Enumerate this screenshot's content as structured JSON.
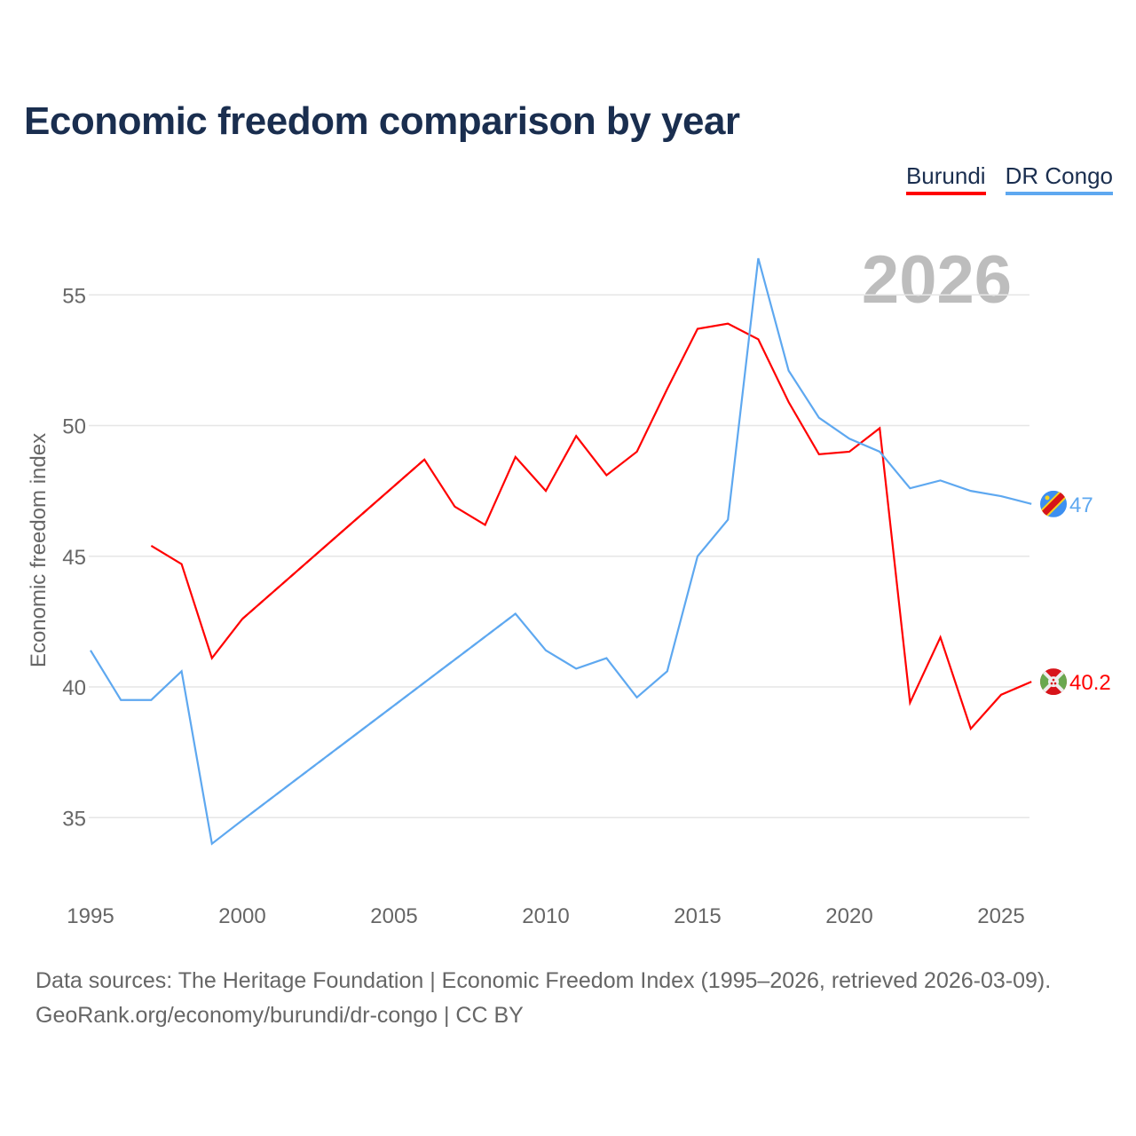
{
  "title": "Economic freedom comparison by year",
  "legend": [
    {
      "name": "Burundi",
      "color": "#ff0000"
    },
    {
      "name": "DR Congo",
      "color": "#5ea8f0"
    }
  ],
  "footer": {
    "line1": "Data sources: The Heritage Foundation | Economic Freedom Index (1995–2026, retrieved 2026-03-09).",
    "line2": "GeoRank.org/economy/burundi/dr-congo | CC BY"
  },
  "chart_data": {
    "type": "line",
    "title": "Economic freedom comparison by year",
    "xlabel": "",
    "ylabel": "Economic freedom index",
    "current_year_label": "2026",
    "xlim": [
      1995,
      2026
    ],
    "ylim": [
      33,
      57
    ],
    "xticks": [
      1995,
      2000,
      2005,
      2010,
      2015,
      2020,
      2025
    ],
    "yticks": [
      35,
      40,
      45,
      50,
      55
    ],
    "x": [
      1995,
      1996,
      1997,
      1998,
      1999,
      2000,
      2001,
      2002,
      2003,
      2004,
      2005,
      2006,
      2007,
      2008,
      2009,
      2010,
      2011,
      2012,
      2013,
      2014,
      2015,
      2016,
      2017,
      2018,
      2019,
      2020,
      2021,
      2022,
      2023,
      2024,
      2025,
      2026
    ],
    "series": [
      {
        "name": "Burundi",
        "color": "#ff0000",
        "end_label": "40.2",
        "flag": "burundi-flag",
        "values": [
          null,
          null,
          45.4,
          44.7,
          41.1,
          42.6,
          null,
          null,
          null,
          null,
          null,
          48.7,
          46.9,
          46.2,
          48.8,
          47.5,
          49.6,
          48.1,
          49.0,
          51.4,
          53.7,
          53.9,
          53.3,
          50.9,
          48.9,
          49.0,
          49.9,
          39.4,
          41.9,
          38.4,
          39.7,
          40.2
        ]
      },
      {
        "name": "DR Congo",
        "color": "#5ea8f0",
        "end_label": "47",
        "flag": "dr-congo-flag",
        "values": [
          41.4,
          39.5,
          39.5,
          40.6,
          34.0,
          34.9,
          null,
          null,
          null,
          null,
          null,
          null,
          null,
          null,
          42.8,
          41.4,
          40.7,
          41.1,
          39.6,
          40.6,
          45.0,
          46.4,
          56.4,
          52.1,
          50.3,
          49.5,
          49.0,
          47.6,
          47.9,
          47.5,
          47.3,
          47.0
        ]
      }
    ]
  }
}
